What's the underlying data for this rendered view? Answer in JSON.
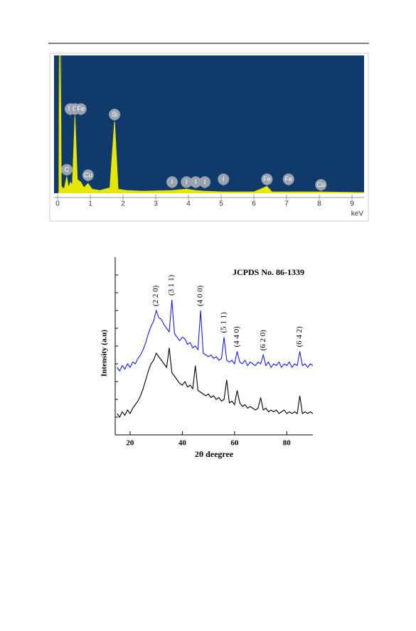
{
  "chart_data": [
    {
      "type": "area",
      "x_label": "keV",
      "x": [
        0,
        0.04,
        0.05,
        0.07,
        0.09,
        0.11,
        0.2,
        0.28,
        0.33,
        0.39,
        0.45,
        0.53,
        0.6,
        0.71,
        0.8,
        0.93,
        1.05,
        1.3,
        1.6,
        1.74,
        1.85,
        2.1,
        2.6,
        3.5,
        3.94,
        4.22,
        4.5,
        5.07,
        6.0,
        6.4,
        6.55,
        7.06,
        8.05,
        9.37
      ],
      "values": [
        0,
        0,
        100,
        10,
        100,
        5,
        3,
        12,
        4,
        8,
        6,
        56,
        10,
        8,
        4,
        7,
        3,
        2,
        4,
        52,
        3,
        2,
        1.5,
        2,
        3,
        2,
        1.5,
        1,
        1,
        5,
        1,
        1,
        1,
        0.5
      ],
      "color": "#e6e600",
      "background": "#113a6c",
      "xlim": [
        -0.11,
        9.37
      ],
      "ylim": [
        0,
        100
      ],
      "xticks": [
        0,
        1,
        2,
        3,
        4,
        5,
        6,
        7,
        8,
        9
      ],
      "peak_labels": [
        {
          "text": "C",
          "x": 0.28
        },
        {
          "text": "N",
          "x": 0.39
        },
        {
          "text": "O",
          "x": 0.53
        },
        {
          "text": "Fe",
          "x": 0.71
        },
        {
          "text": "Cu",
          "x": 0.93
        },
        {
          "text": "Si",
          "x": 1.74
        },
        {
          "text": "I",
          "x": 3.5
        },
        {
          "text": "I",
          "x": 3.94
        },
        {
          "text": "I",
          "x": 4.22
        },
        {
          "text": "I",
          "x": 4.5
        },
        {
          "text": "I",
          "x": 5.07
        },
        {
          "text": "Fe",
          "x": 6.4
        },
        {
          "text": "Fe",
          "x": 7.06
        },
        {
          "text": "Cu",
          "x": 8.05
        }
      ]
    },
    {
      "type": "line",
      "x_label": "2θ deegree",
      "y_label": "Intensity (a.u)",
      "annotation": "JCPDS No. 86-1339",
      "x": [
        15,
        16,
        17,
        18,
        19,
        20,
        21,
        22,
        23,
        24,
        25,
        26,
        27,
        28,
        29,
        30,
        31,
        32,
        33,
        34,
        35,
        36,
        37,
        38,
        39,
        40,
        41,
        42,
        43,
        44,
        45,
        46,
        47,
        48,
        49,
        50,
        51,
        52,
        53,
        54,
        55,
        56,
        57,
        58,
        59,
        60,
        61,
        62,
        63,
        64,
        65,
        66,
        67,
        68,
        69,
        70,
        71,
        72,
        73,
        74,
        75,
        76,
        77,
        78,
        79,
        80,
        81,
        82,
        83,
        84,
        85,
        86,
        87,
        88,
        89,
        90
      ],
      "series": [
        {
          "color": "#1a1aff",
          "values": [
            38,
            36,
            39,
            37,
            40,
            38,
            41,
            40,
            43,
            45,
            48,
            52,
            57,
            61,
            64,
            70,
            66,
            65,
            62,
            60,
            58,
            76,
            57,
            55,
            53,
            55,
            54,
            51,
            52,
            49,
            50,
            48,
            70,
            46,
            45,
            44,
            45,
            43,
            44,
            42,
            43,
            55,
            42,
            41,
            42,
            40,
            47,
            41,
            40,
            42,
            39,
            41,
            40,
            39,
            41,
            40,
            45,
            39,
            41,
            38,
            40,
            39,
            41,
            38,
            40,
            39,
            41,
            38,
            40,
            39,
            47,
            39,
            40,
            38,
            40,
            39
          ]
        },
        {
          "color": "#000000",
          "values": [
            12,
            10,
            13,
            11,
            14,
            12,
            15,
            17,
            19,
            22,
            26,
            31,
            36,
            40,
            42,
            46,
            44,
            42,
            40,
            38,
            49,
            35,
            33,
            31,
            29,
            28,
            30,
            27,
            28,
            26,
            39,
            25,
            24,
            23,
            22,
            23,
            21,
            22,
            20,
            21,
            19,
            20,
            31,
            18,
            19,
            17,
            25,
            18,
            16,
            17,
            15,
            16,
            15,
            14,
            15,
            21,
            14,
            15,
            13,
            14,
            13,
            14,
            12,
            13,
            14,
            12,
            13,
            12,
            13,
            12,
            22,
            12,
            13,
            12,
            13,
            12
          ]
        }
      ],
      "xlim": [
        14.3,
        90
      ],
      "ylim": [
        0,
        100
      ],
      "xticks": [
        20,
        40,
        60,
        80
      ],
      "yticks": [
        10,
        20,
        30,
        40,
        50,
        60,
        70,
        80,
        90
      ],
      "peak_labels": [
        {
          "text": "(2 2 0)",
          "x": 30
        },
        {
          "text": "(3 1 1)",
          "x": 36
        },
        {
          "text": "(4 0 0)",
          "x": 47
        },
        {
          "text": "(5 1 1)",
          "x": 56
        },
        {
          "text": "(4 4 0)",
          "x": 61
        },
        {
          "text": "(6 2 0)",
          "x": 71
        },
        {
          "text": "(6 4 2)",
          "x": 85
        }
      ]
    }
  ]
}
